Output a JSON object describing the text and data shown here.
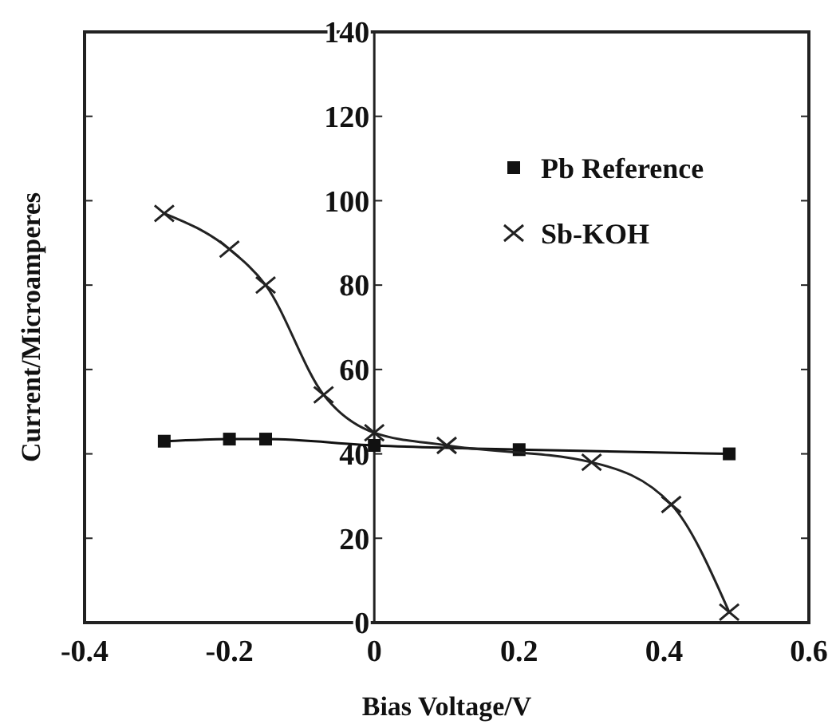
{
  "chart_data": {
    "type": "line",
    "xlabel": "Bias Voltage/V",
    "ylabel": "Current/Microamperes",
    "xlim": [
      -0.4,
      0.6
    ],
    "ylim": [
      0,
      140
    ],
    "xticks": [
      -0.4,
      -0.2,
      0,
      0.2,
      0.4,
      0.6
    ],
    "yticks": [
      0,
      20,
      40,
      60,
      80,
      100,
      120,
      140
    ],
    "grid": false,
    "legend": "top right",
    "series": [
      {
        "name": "Pb Reference",
        "color": "#111111",
        "marker": "square",
        "x": [
          -0.29,
          -0.2,
          -0.15,
          0,
          0.2,
          0.49
        ],
        "values": [
          43,
          43.5,
          43.5,
          42,
          41,
          40
        ]
      },
      {
        "name": "Sb-KOH",
        "color": "#222222",
        "marker": "cross",
        "x": [
          -0.29,
          -0.2,
          -0.15,
          -0.07,
          0,
          0.1,
          0.3,
          0.41,
          0.49
        ],
        "values": [
          97,
          88.5,
          80,
          54,
          45,
          42,
          38,
          28,
          2.5
        ]
      }
    ]
  }
}
